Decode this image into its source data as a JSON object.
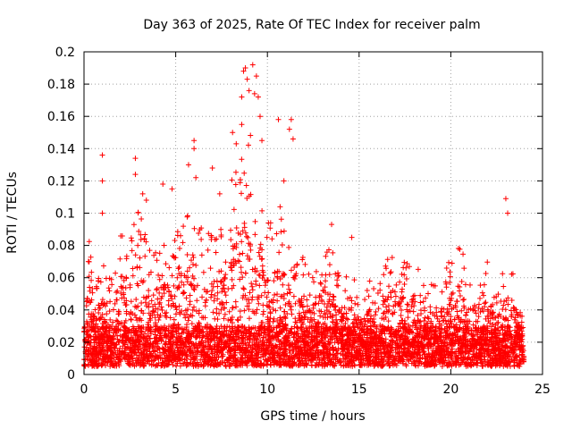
{
  "chart_data": {
    "type": "scatter",
    "title": "Day 363 of 2025, Rate Of TEC Index for receiver palm",
    "xlabel": "GPS time / hours",
    "ylabel": "ROTI / TECUs",
    "xlim": [
      0,
      25
    ],
    "ylim": [
      0,
      0.2
    ],
    "xticks": [
      0,
      5,
      10,
      15,
      20,
      25
    ],
    "xtick_labels": [
      "0",
      "5",
      "10",
      "15",
      "20",
      "25"
    ],
    "yticks": [
      0,
      0.02,
      0.04,
      0.06,
      0.08,
      0.1,
      0.12,
      0.14,
      0.16,
      0.18,
      0.2
    ],
    "ytick_labels": [
      "0",
      "0.02",
      "0.04",
      "0.06",
      "0.08",
      "0.1",
      "0.12",
      "0.14",
      "0.16",
      "0.18",
      "0.2"
    ],
    "grid": true,
    "marker": "+",
    "color": "#ff0000",
    "envelope": {
      "x": [
        0,
        0.3,
        0.5,
        1,
        1.5,
        2,
        2.5,
        3,
        3.5,
        4,
        4.5,
        5,
        5.5,
        6,
        6.5,
        7,
        7.5,
        8,
        8.5,
        9,
        9.5,
        10,
        10.5,
        11,
        11.5,
        12,
        12.5,
        13,
        13.5,
        14,
        14.5,
        15,
        15.5,
        16,
        16.5,
        17,
        17.5,
        18,
        18.5,
        19,
        19.5,
        20,
        20.5,
        21,
        21.5,
        22,
        22.5,
        23,
        23.5,
        24
      ],
      "y": [
        0.06,
        0.085,
        0.06,
        0.07,
        0.06,
        0.095,
        0.09,
        0.105,
        0.08,
        0.09,
        0.085,
        0.09,
        0.1,
        0.115,
        0.085,
        0.095,
        0.09,
        0.12,
        0.14,
        0.17,
        0.12,
        0.1,
        0.11,
        0.095,
        0.075,
        0.075,
        0.065,
        0.085,
        0.08,
        0.07,
        0.065,
        0.055,
        0.06,
        0.06,
        0.075,
        0.08,
        0.07,
        0.075,
        0.065,
        0.055,
        0.06,
        0.075,
        0.08,
        0.065,
        0.055,
        0.07,
        0.05,
        0.075,
        0.065,
        0.045
      ]
    },
    "outliers": [
      {
        "x": 1.0,
        "y": 0.136
      },
      {
        "x": 1.0,
        "y": 0.12
      },
      {
        "x": 1.0,
        "y": 0.1
      },
      {
        "x": 2.8,
        "y": 0.134
      },
      {
        "x": 2.8,
        "y": 0.124
      },
      {
        "x": 3.2,
        "y": 0.112
      },
      {
        "x": 3.4,
        "y": 0.108
      },
      {
        "x": 4.3,
        "y": 0.118
      },
      {
        "x": 4.8,
        "y": 0.115
      },
      {
        "x": 5.7,
        "y": 0.13
      },
      {
        "x": 6.0,
        "y": 0.145
      },
      {
        "x": 6.0,
        "y": 0.14
      },
      {
        "x": 6.1,
        "y": 0.122
      },
      {
        "x": 7.0,
        "y": 0.128
      },
      {
        "x": 7.4,
        "y": 0.112
      },
      {
        "x": 8.1,
        "y": 0.15
      },
      {
        "x": 8.3,
        "y": 0.143
      },
      {
        "x": 8.6,
        "y": 0.155
      },
      {
        "x": 8.7,
        "y": 0.188
      },
      {
        "x": 8.8,
        "y": 0.19
      },
      {
        "x": 8.9,
        "y": 0.183
      },
      {
        "x": 9.0,
        "y": 0.176
      },
      {
        "x": 8.6,
        "y": 0.172
      },
      {
        "x": 9.2,
        "y": 0.192
      },
      {
        "x": 9.4,
        "y": 0.185
      },
      {
        "x": 9.3,
        "y": 0.174
      },
      {
        "x": 9.5,
        "y": 0.172
      },
      {
        "x": 9.6,
        "y": 0.16
      },
      {
        "x": 9.7,
        "y": 0.145
      },
      {
        "x": 10.6,
        "y": 0.158
      },
      {
        "x": 11.3,
        "y": 0.158
      },
      {
        "x": 11.2,
        "y": 0.152
      },
      {
        "x": 11.4,
        "y": 0.146
      },
      {
        "x": 10.9,
        "y": 0.12
      },
      {
        "x": 13.5,
        "y": 0.093
      },
      {
        "x": 14.6,
        "y": 0.085
      },
      {
        "x": 23.0,
        "y": 0.109
      },
      {
        "x": 23.1,
        "y": 0.1
      }
    ]
  }
}
